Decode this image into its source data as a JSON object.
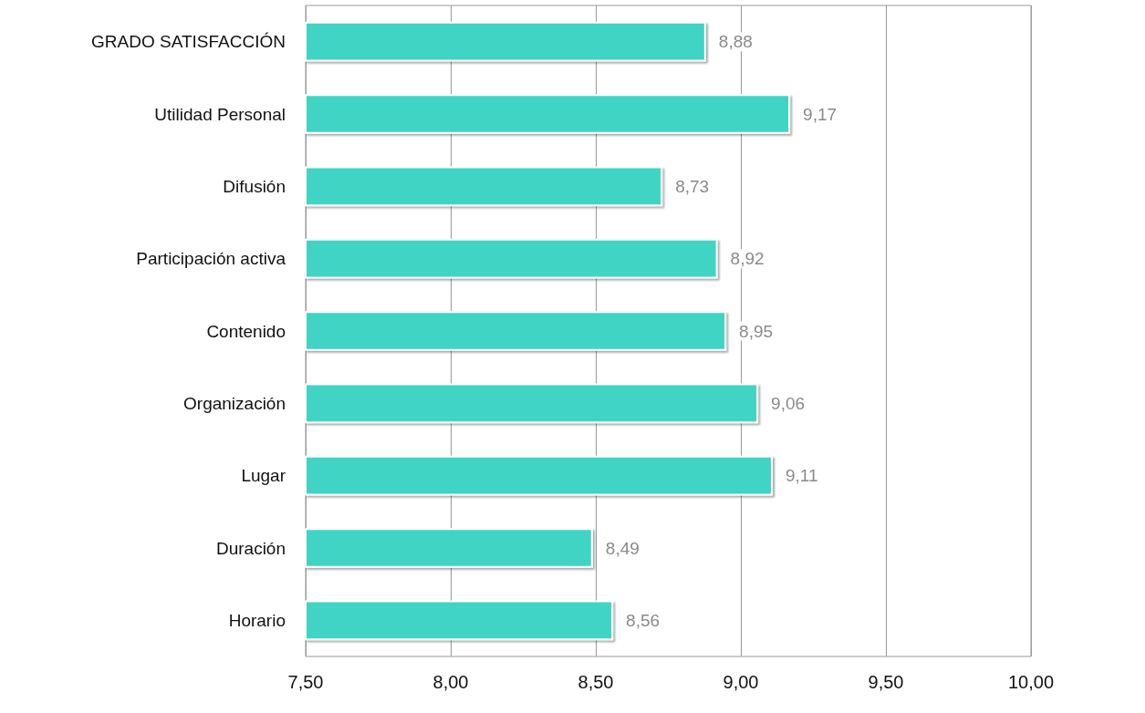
{
  "chart_data": {
    "type": "bar",
    "orientation": "horizontal",
    "categories": [
      "GRADO SATISFACCIÓN",
      "Utilidad Personal",
      "Difusión",
      "Participación activa",
      "Contenido",
      "Organización",
      "Lugar",
      "Duración",
      "Horario"
    ],
    "values": [
      8.88,
      9.17,
      8.73,
      8.92,
      8.95,
      9.06,
      9.11,
      8.49,
      8.56
    ],
    "value_labels": [
      "8,88",
      "9,17",
      "8,73",
      "8,92",
      "8,95",
      "9,06",
      "9,11",
      "8,49",
      "8,56"
    ],
    "color": "#3fd4c4",
    "xlim": [
      7.5,
      10
    ],
    "xticks": [
      {
        "value": 7.5,
        "label": "7,50"
      },
      {
        "value": 8,
        "label": "8,00"
      },
      {
        "value": 8.5,
        "label": "8,50"
      },
      {
        "value": 9,
        "label": "9,00"
      },
      {
        "value": 9.5,
        "label": "9,50"
      },
      {
        "value": 10,
        "label": "10,00"
      }
    ],
    "grid": "x"
  }
}
